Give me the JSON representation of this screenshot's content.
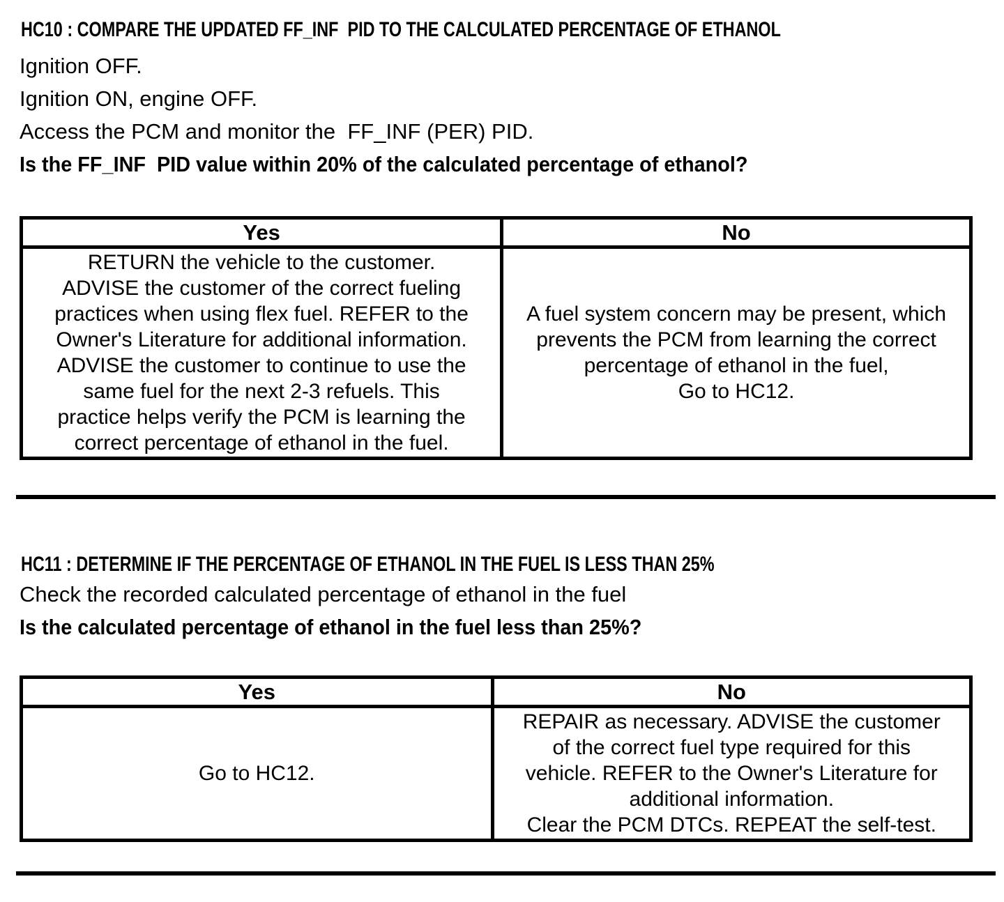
{
  "page": {
    "background": "#ffffff",
    "text_color": "#000000",
    "border_color": "#000000"
  },
  "hc10": {
    "heading": "HC10 : COMPARE THE UPDATED FF_INF  PID TO THE CALCULATED PERCENTAGE OF ETHANOL",
    "steps": [
      "Ignition OFF.",
      "Ignition ON, engine OFF.",
      "Access the PCM and monitor the  FF_INF (PER) PID."
    ],
    "question": "Is the FF_INF  PID value within 20% of the calculated percentage of ethanol?",
    "table": {
      "headers": [
        "Yes",
        "No"
      ],
      "yes": "RETURN the vehicle to the customer.\nADVISE the customer of the correct fueling\npractices when using flex fuel. REFER to the\nOwner's Literature for additional information.\nADVISE the customer to continue to use the\nsame fuel for the next 2-3 refuels. This\npractice helps verify the PCM is learning the\ncorrect percentage of ethanol in the fuel.",
      "no": "A fuel system concern may be present, which\nprevents the PCM from learning the correct\npercentage of ethanol in the fuel,\nGo to HC12."
    }
  },
  "hc11": {
    "heading": "HC11 : DETERMINE IF THE PERCENTAGE OF ETHANOL IN THE FUEL IS LESS THAN 25%",
    "instruction": "Check the recorded calculated percentage of ethanol in the fuel",
    "question": "Is the calculated percentage of ethanol in the fuel less than 25%?",
    "table": {
      "headers": [
        "Yes",
        "No"
      ],
      "yes": "Go to HC12.",
      "no": "REPAIR as necessary. ADVISE the customer\nof the correct fuel type required for this\nvehicle. REFER to the Owner's Literature for\nadditional information.\nClear the PCM DTCs. REPEAT the self-test."
    }
  }
}
